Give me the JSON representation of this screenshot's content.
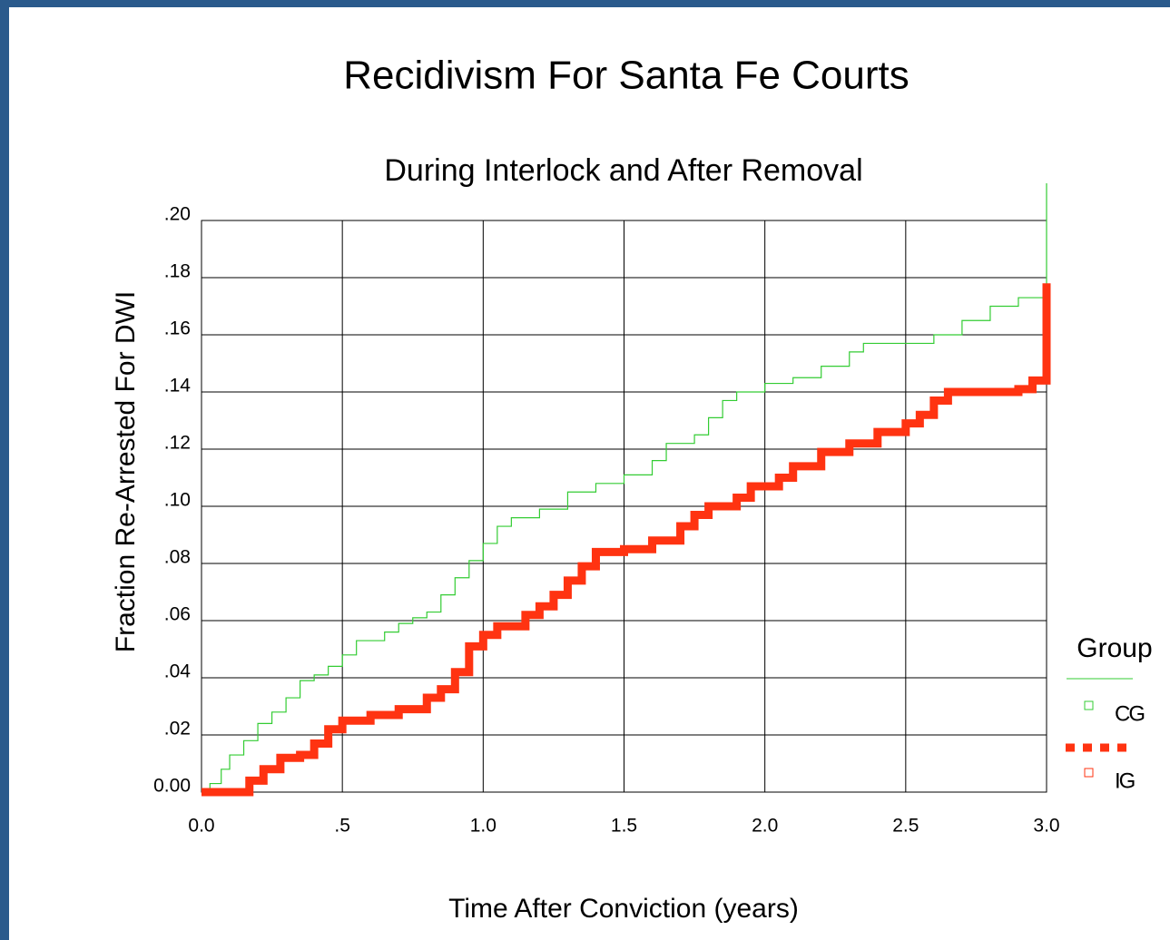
{
  "chart_data": {
    "type": "step",
    "title": "Recidivism For Santa Fe Courts",
    "subtitle": "During Interlock and After Removal",
    "x_label": "Time After Conviction (years)",
    "y_label": "Fraction Re-Arrested For DWI",
    "legend_title": "Group",
    "legend": "right",
    "grid": true,
    "xlim": [
      0,
      3
    ],
    "ylim": [
      0,
      0.2
    ],
    "xticks": [
      {
        "value": 0,
        "label": "0.0"
      },
      {
        "value": 0.5,
        "label": ".5"
      },
      {
        "value": 1,
        "label": "1.0"
      },
      {
        "value": 1.5,
        "label": "1.5"
      },
      {
        "value": 2,
        "label": "2.0"
      },
      {
        "value": 2.5,
        "label": "2.5"
      },
      {
        "value": 3,
        "label": "3.0"
      }
    ],
    "yticks": [
      {
        "value": 0,
        "label": "0.00"
      },
      {
        "value": 0.02,
        "label": ".02"
      },
      {
        "value": 0.04,
        "label": ".04"
      },
      {
        "value": 0.06,
        "label": ".06"
      },
      {
        "value": 0.08,
        "label": ".08"
      },
      {
        "value": 0.1,
        "label": ".10"
      },
      {
        "value": 0.12,
        "label": ".12"
      },
      {
        "value": 0.14,
        "label": ".14"
      },
      {
        "value": 0.16,
        "label": ".16"
      },
      {
        "value": 0.18,
        "label": ".18"
      },
      {
        "value": 0.2,
        "label": ".20"
      }
    ],
    "series": [
      {
        "name": "CG",
        "color": "#33cc33",
        "width": 1.2,
        "x": [
          0,
          0.03,
          0.07,
          0.1,
          0.15,
          0.2,
          0.25,
          0.3,
          0.35,
          0.4,
          0.45,
          0.5,
          0.55,
          0.65,
          0.7,
          0.75,
          0.8,
          0.85,
          0.9,
          0.95,
          1.0,
          1.05,
          1.1,
          1.2,
          1.3,
          1.4,
          1.5,
          1.6,
          1.65,
          1.75,
          1.8,
          1.85,
          1.9,
          2.0,
          2.1,
          2.2,
          2.3,
          2.35,
          2.6,
          2.7,
          2.8,
          2.9,
          3.0,
          3.0
        ],
        "values": [
          0,
          0.003,
          0.008,
          0.013,
          0.018,
          0.024,
          0.028,
          0.033,
          0.039,
          0.041,
          0.044,
          0.048,
          0.053,
          0.056,
          0.059,
          0.061,
          0.063,
          0.069,
          0.075,
          0.081,
          0.087,
          0.093,
          0.096,
          0.099,
          0.105,
          0.108,
          0.111,
          0.116,
          0.122,
          0.125,
          0.131,
          0.137,
          0.14,
          0.143,
          0.145,
          0.149,
          0.154,
          0.157,
          0.16,
          0.165,
          0.17,
          0.173,
          0.173,
          0.213
        ]
      },
      {
        "name": "IG",
        "color": "#ff3311",
        "width": 9,
        "x": [
          0,
          0.13,
          0.17,
          0.22,
          0.28,
          0.35,
          0.4,
          0.45,
          0.5,
          0.6,
          0.7,
          0.8,
          0.85,
          0.9,
          0.95,
          1.0,
          1.05,
          1.15,
          1.2,
          1.25,
          1.3,
          1.35,
          1.4,
          1.5,
          1.6,
          1.7,
          1.75,
          1.8,
          1.9,
          1.95,
          2.05,
          2.1,
          2.2,
          2.3,
          2.4,
          2.5,
          2.55,
          2.6,
          2.65,
          2.9,
          2.95,
          3.0,
          3.0
        ],
        "values": [
          0,
          0,
          0.004,
          0.008,
          0.012,
          0.013,
          0.017,
          0.022,
          0.025,
          0.027,
          0.029,
          0.033,
          0.036,
          0.042,
          0.051,
          0.055,
          0.058,
          0.062,
          0.065,
          0.069,
          0.074,
          0.079,
          0.084,
          0.085,
          0.088,
          0.093,
          0.097,
          0.1,
          0.103,
          0.107,
          0.11,
          0.114,
          0.119,
          0.122,
          0.126,
          0.129,
          0.132,
          0.137,
          0.14,
          0.141,
          0.144,
          0.144,
          0.178
        ]
      }
    ]
  }
}
